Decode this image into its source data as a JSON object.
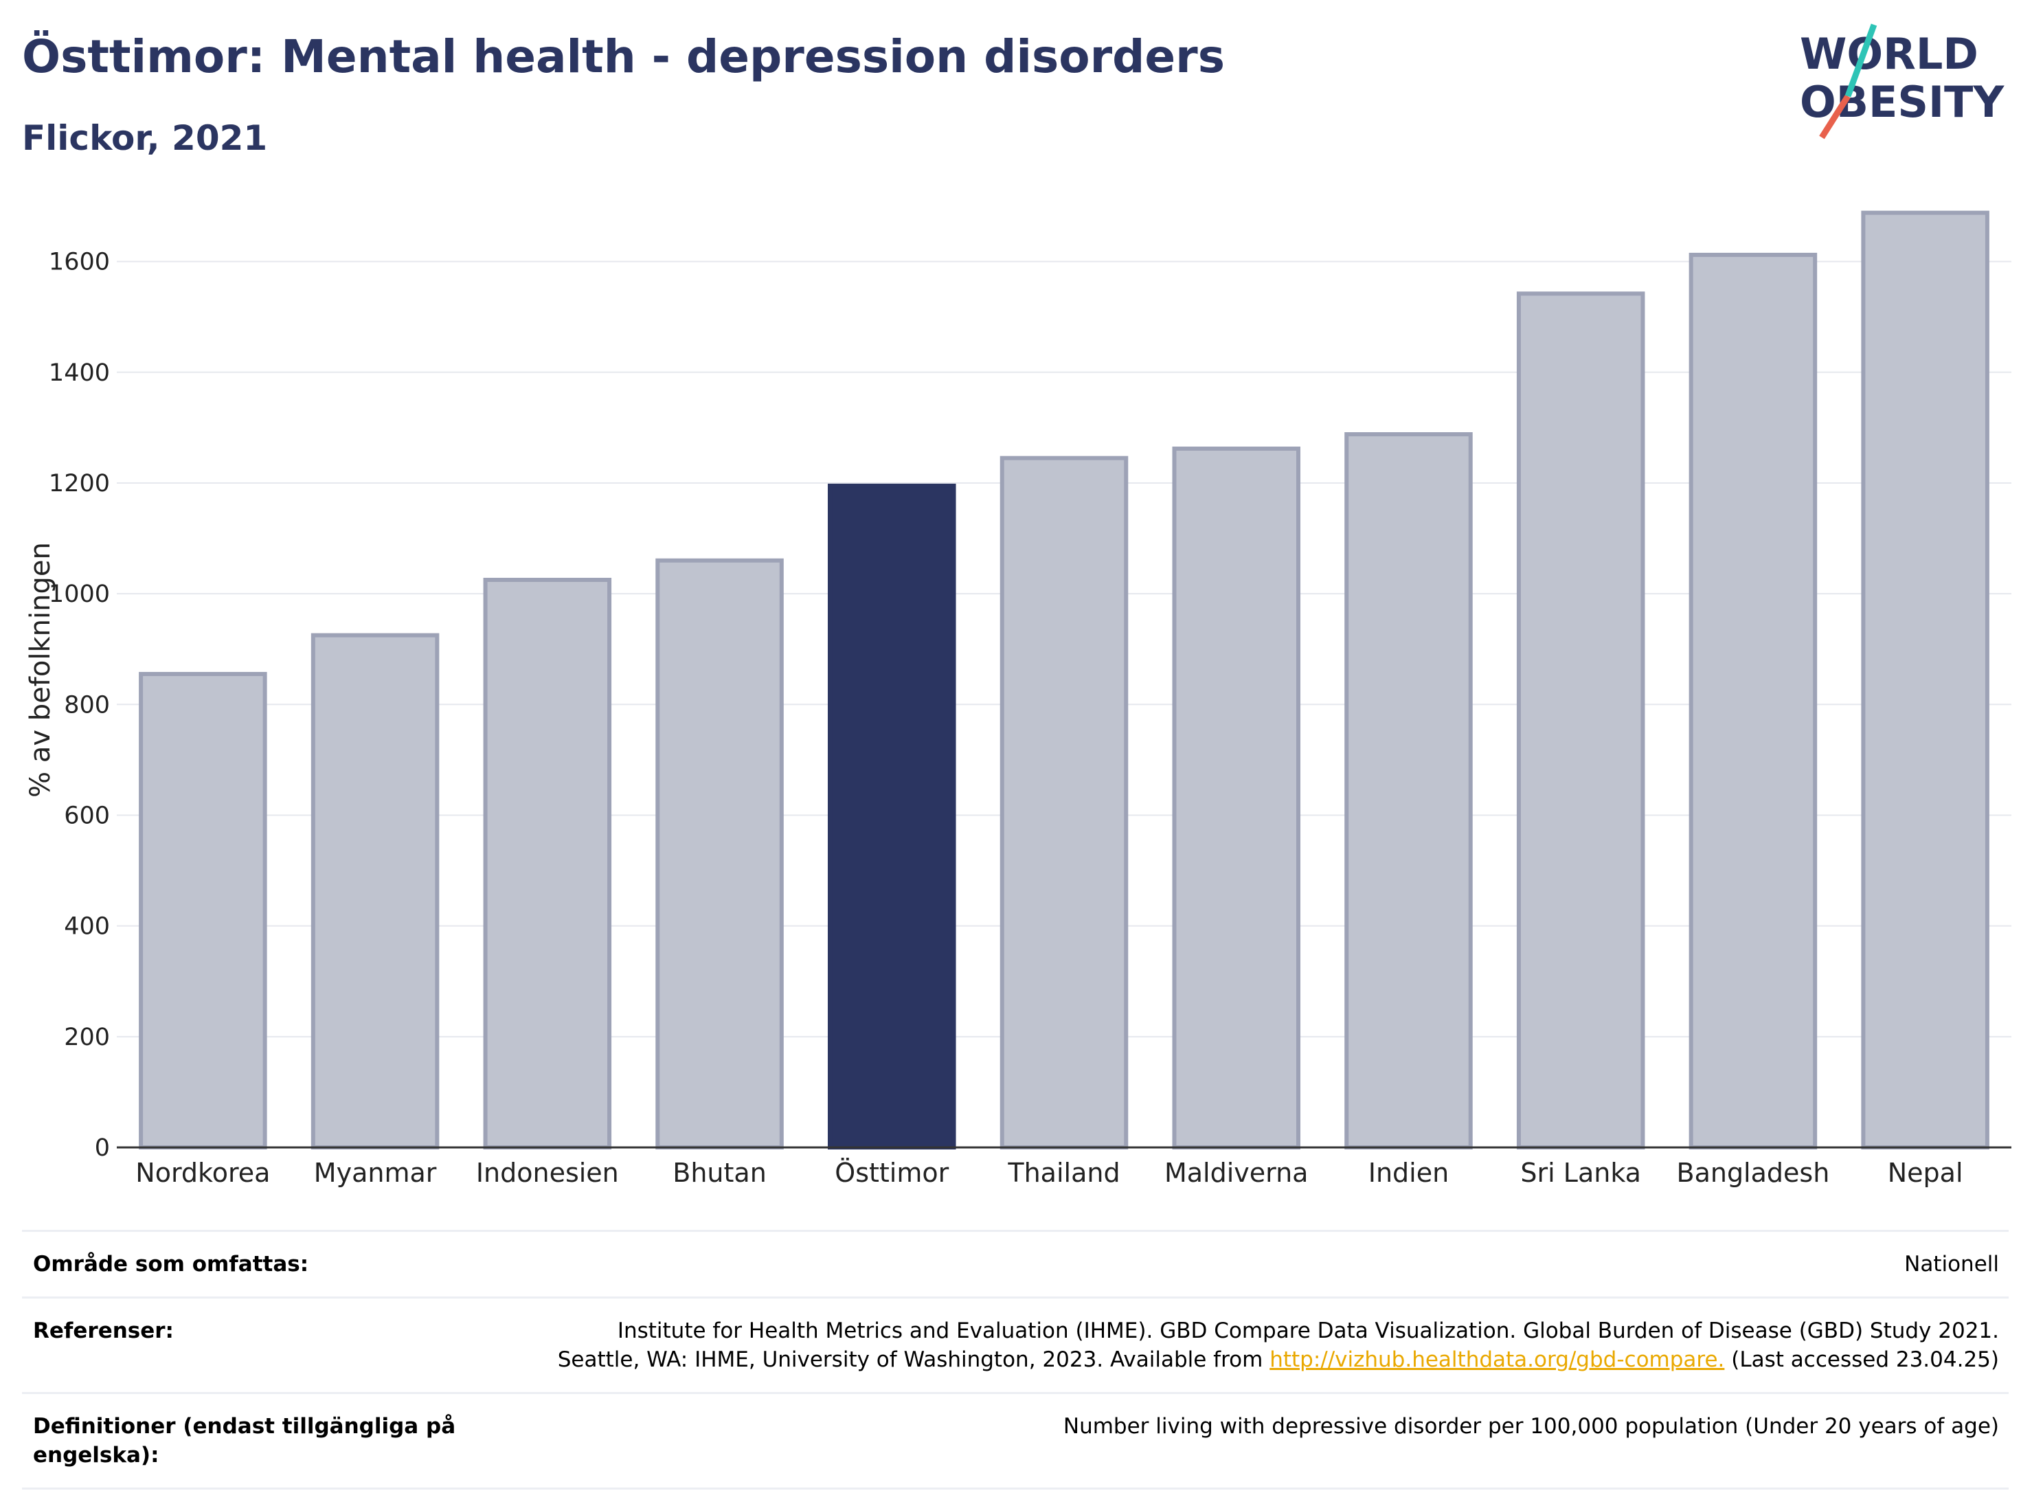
{
  "title": "Östtimor: Mental health - depression disorders",
  "subtitle": "Flickor, 2021",
  "logo": {
    "line1": "WORLD",
    "line2": "OBESITY",
    "accent_teal": "#2ec4b6",
    "accent_red": "#e8614c"
  },
  "colors": {
    "highlight": "#2b3561",
    "bar_fill": "#bfc3cf",
    "bar_edge": "#9da2b6",
    "text": "#2b3561"
  },
  "chart_data": {
    "type": "bar",
    "categories": [
      "Nordkorea",
      "Myanmar",
      "Indonesien",
      "Bhutan",
      "Östtimor",
      "Thailand",
      "Maldiverna",
      "Indien",
      "Sri Lanka",
      "Bangladesh",
      "Nepal"
    ],
    "values": [
      855,
      925,
      1025,
      1060,
      1195,
      1245,
      1262,
      1288,
      1542,
      1612,
      1688
    ],
    "highlight": "Östtimor",
    "ylabel": "% av befolkningen",
    "xlabel": "",
    "ylim": [
      0,
      1700
    ],
    "yticks": [
      0,
      200,
      400,
      600,
      800,
      1000,
      1200,
      1400,
      1600
    ],
    "grid": true
  },
  "meta": {
    "coverage_label": "Område som omfattas:",
    "coverage_value": "Nationell",
    "references_label": "Referenser:",
    "references_line1": "Institute for Health Metrics and Evaluation (IHME). GBD Compare Data Visualization. Global Burden of Disease (GBD) Study 2021.",
    "references_line2_pre": "Seattle, WA: IHME, University of Washington, 2023. Available from",
    "references_link": "http://vizhub.healthdata.org/gbd-compare.",
    "references_line2_post": "(Last accessed 23.04.25)",
    "definitions_label": "Definitioner (endast tillgängliga på engelska):",
    "definitions_value": "Number living with depressive disorder per 100,000 population (Under 20 years of age)"
  }
}
